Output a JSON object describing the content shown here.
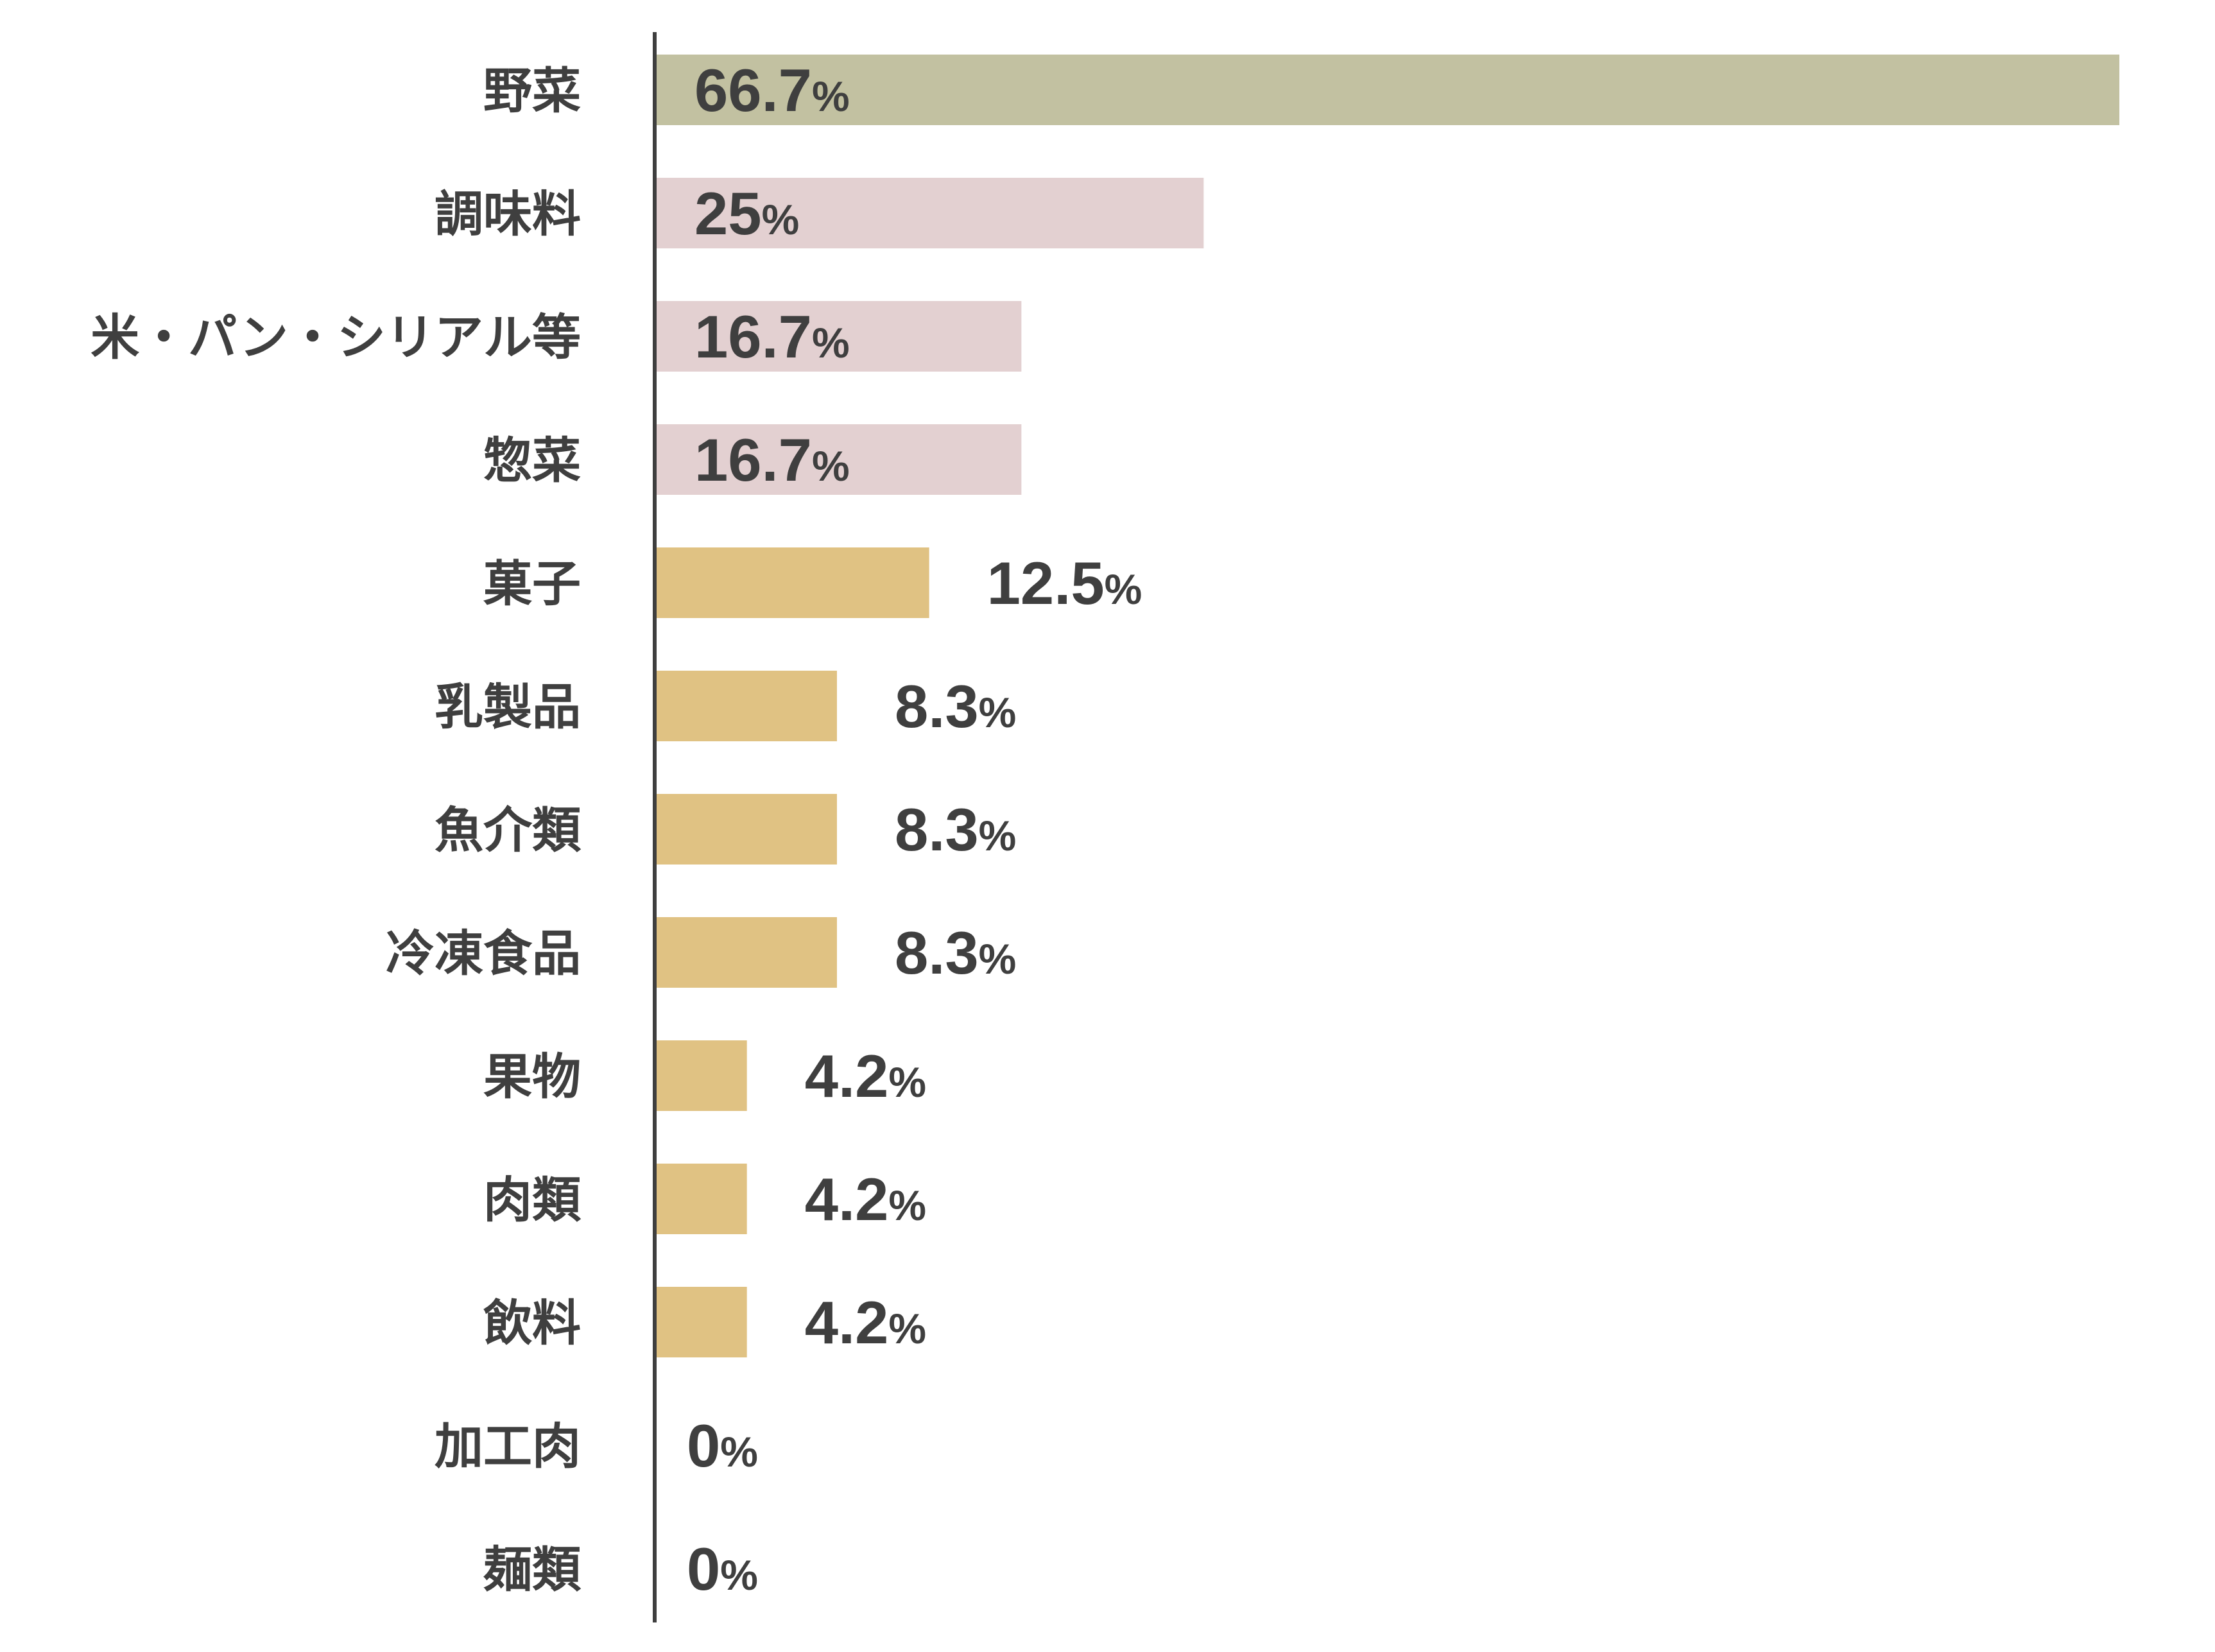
{
  "chart_data": {
    "type": "bar",
    "orientation": "horizontal",
    "title": "",
    "xlabel": "",
    "ylabel": "",
    "xlim": [
      0,
      66.7
    ],
    "grid": false,
    "legend": "none",
    "unit_symbol": "%",
    "categories": [
      "野菜",
      "調味料",
      "米・パン・シリアル等",
      "惣菜",
      "菓子",
      "乳製品",
      "魚介類",
      "冷凍食品",
      "果物",
      "肉類",
      "飲料",
      "加工肉",
      "麺類"
    ],
    "values": [
      66.7,
      25,
      16.7,
      16.7,
      12.5,
      8.3,
      8.3,
      8.3,
      4.2,
      4.2,
      4.2,
      0,
      0
    ],
    "value_labels": [
      "66.7",
      "25",
      "16.7",
      "16.7",
      "12.5",
      "8.3",
      "8.3",
      "8.3",
      "4.2",
      "4.2",
      "4.2",
      "0",
      "0"
    ],
    "bar_colors": [
      "#c2c1a1",
      "#e3d0d1",
      "#e3d0d1",
      "#e3d0d1",
      "#e0c283",
      "#e0c283",
      "#e0c283",
      "#e0c283",
      "#e0c283",
      "#e0c283",
      "#e0c283",
      "#e0c283",
      "#e0c283"
    ],
    "axis_color": "#3f3f3f",
    "text_color": "#3f3f3f"
  }
}
